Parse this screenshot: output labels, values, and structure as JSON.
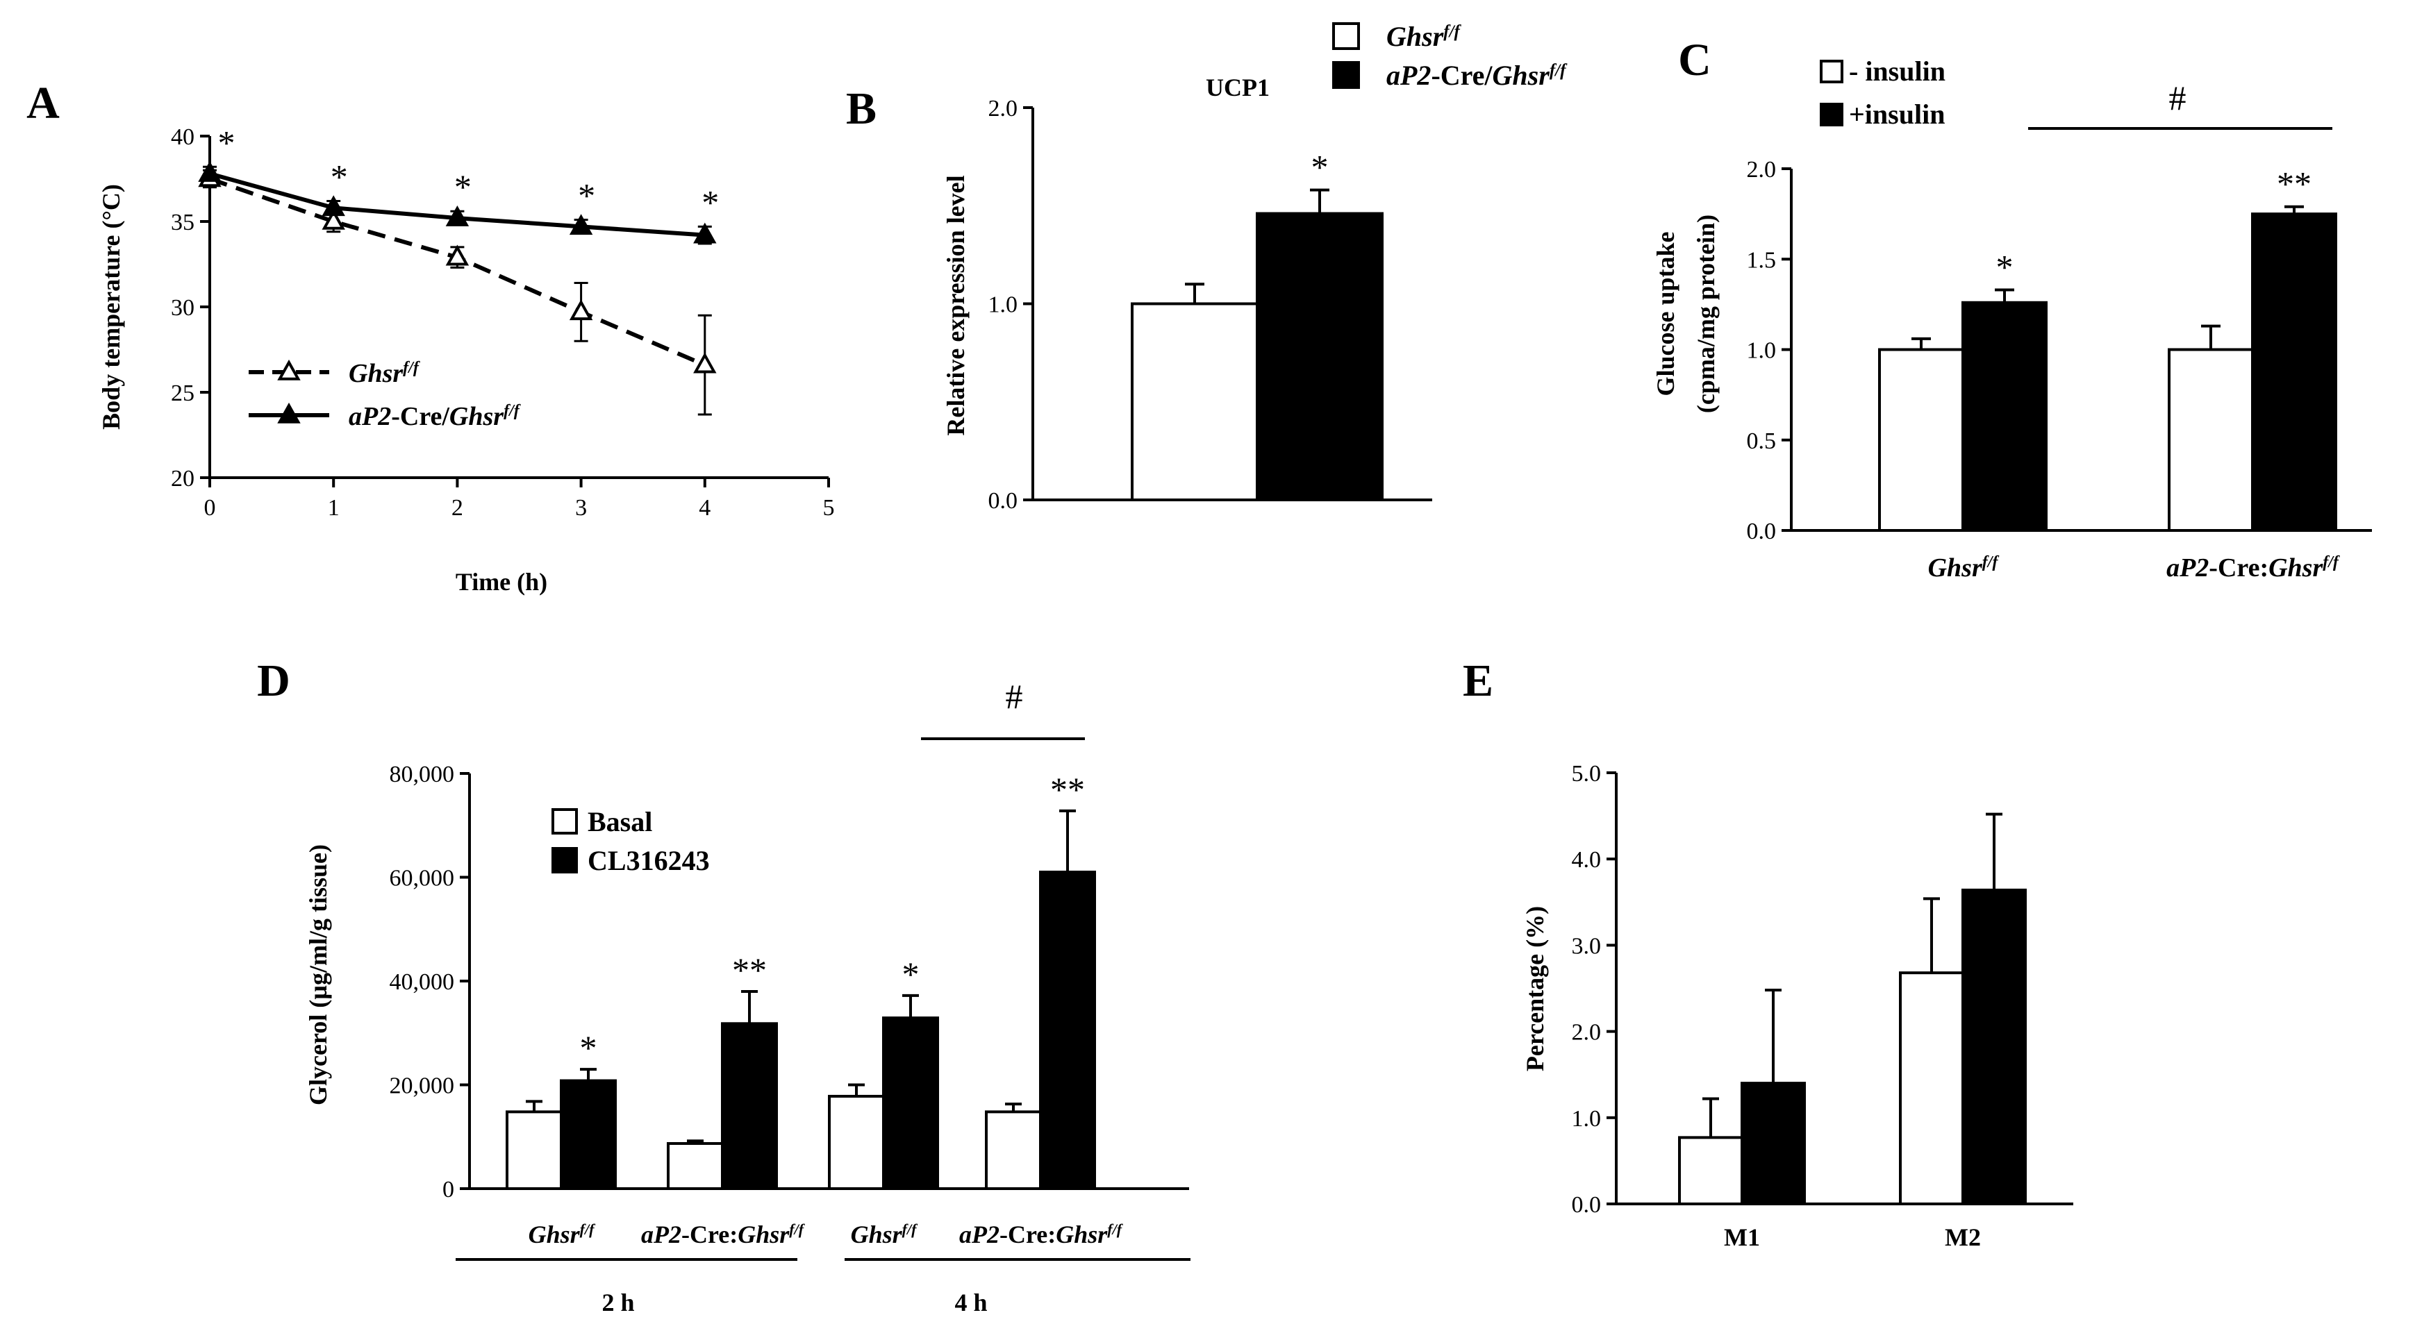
{
  "chart_data": [
    {
      "panel": "A",
      "type": "line",
      "x": [
        0,
        1,
        2,
        3,
        4
      ],
      "xlabel": "Time (h)",
      "ylabel": "Body temperature (°C)",
      "xlim": [
        0,
        5
      ],
      "ylim": [
        20,
        40
      ],
      "xticks": [
        "0",
        "1",
        "2",
        "3",
        "4",
        "5"
      ],
      "yticks": [
        "20",
        "25",
        "30",
        "35",
        "40"
      ],
      "series": [
        {
          "name": "Ghsr",
          "sup": "f/f",
          "marker": "open-triangle",
          "dash": true,
          "values": [
            37.5,
            35.0,
            32.9,
            29.7,
            26.6
          ],
          "errors": [
            0.5,
            0.6,
            0.6,
            1.7,
            2.9
          ]
        },
        {
          "name": "aP2",
          "mid": "-Cre/",
          "name2": "Ghsr",
          "sup": "f/f",
          "marker": "filled-triangle",
          "dash": false,
          "values": [
            37.8,
            35.8,
            35.2,
            34.7,
            34.2
          ],
          "errors": [
            0.4,
            0.4,
            0.4,
            0.4,
            0.5
          ]
        }
      ],
      "annotations": [
        "*",
        "*",
        "*",
        "*",
        "*"
      ]
    },
    {
      "panel": "B",
      "type": "bar",
      "title": "UCP1",
      "ylabel": "Relative expression level",
      "ylim": [
        0,
        2
      ],
      "yticks": [
        "0.0",
        "1.0",
        "2.0"
      ],
      "series": [
        {
          "name": "Ghsr",
          "sup": "f/f",
          "fill": "#ffffff",
          "values": [
            1.0
          ],
          "errors": [
            0.1
          ]
        },
        {
          "name": "aP2",
          "mid": "-Cre/",
          "name2": "Ghsr",
          "sup": "f/f",
          "fill": "#000000",
          "values": [
            1.46
          ],
          "errors": [
            0.12
          ]
        }
      ],
      "annotations": [
        "*"
      ]
    },
    {
      "panel": "C",
      "type": "bar",
      "ylabel": "Glucose uptake",
      "ylabel2": "(cpma/mg protein)",
      "ylim": [
        0,
        2
      ],
      "yticks": [
        "0.0",
        "0.5",
        "1.0",
        "1.5",
        "2.0"
      ],
      "categories": [
        {
          "name": "Ghsr",
          "sup": "f/f"
        },
        {
          "name": "aP2",
          "mid": "-Cre:",
          "name2": "Ghsr",
          "sup": "f/f"
        }
      ],
      "series": [
        {
          "name": "- insulin",
          "fill": "#ffffff",
          "values": [
            1.0,
            1.0
          ],
          "errors": [
            0.06,
            0.13
          ]
        },
        {
          "name": "+insulin",
          "fill": "#000000",
          "values": [
            1.26,
            1.75
          ],
          "errors": [
            0.07,
            0.04
          ]
        }
      ],
      "annotations": [
        "*",
        "**",
        "#"
      ]
    },
    {
      "panel": "D",
      "type": "bar",
      "ylabel": "Glycerol (µg/ml/g tissue)",
      "ylim": [
        0,
        80000
      ],
      "yticks": [
        "0",
        "20,000",
        "40,000",
        "60,000",
        "80,000"
      ],
      "categories": [
        {
          "name": "Ghsr",
          "sup": "f/f"
        },
        {
          "name": "aP2",
          "mid": "-Cre:",
          "name2": "Ghsr",
          "sup": "f/f"
        },
        {
          "name": "Ghsr",
          "sup": "f/f"
        },
        {
          "name": "aP2",
          "mid": "-Cre:",
          "name2": "Ghsr",
          "sup": "f/f"
        }
      ],
      "groups": [
        "2 h",
        "4 h"
      ],
      "series": [
        {
          "name": "Basal",
          "fill": "#ffffff",
          "values": [
            14800,
            8700,
            17800,
            14800
          ],
          "errors": [
            2000,
            500,
            2200,
            1500
          ]
        },
        {
          "name": "CL316243",
          "fill": "#000000",
          "values": [
            20800,
            31800,
            32900,
            61000
          ],
          "errors": [
            2200,
            6200,
            4300,
            11800
          ]
        }
      ],
      "annotations": [
        "*",
        "**",
        "*",
        "**",
        "#"
      ]
    },
    {
      "panel": "E",
      "type": "bar",
      "ylabel": "Percentage (%)",
      "ylim": [
        0,
        5
      ],
      "yticks": [
        "0.0",
        "1.0",
        "2.0",
        "3.0",
        "4.0",
        "5.0"
      ],
      "categories": [
        "M1",
        "M2"
      ],
      "series": [
        {
          "name": "",
          "fill": "#ffffff",
          "values": [
            0.77,
            2.68
          ],
          "errors": [
            0.45,
            0.86
          ]
        },
        {
          "name": "",
          "fill": "#000000",
          "values": [
            1.4,
            3.64
          ],
          "errors": [
            1.08,
            0.88
          ]
        }
      ]
    }
  ]
}
